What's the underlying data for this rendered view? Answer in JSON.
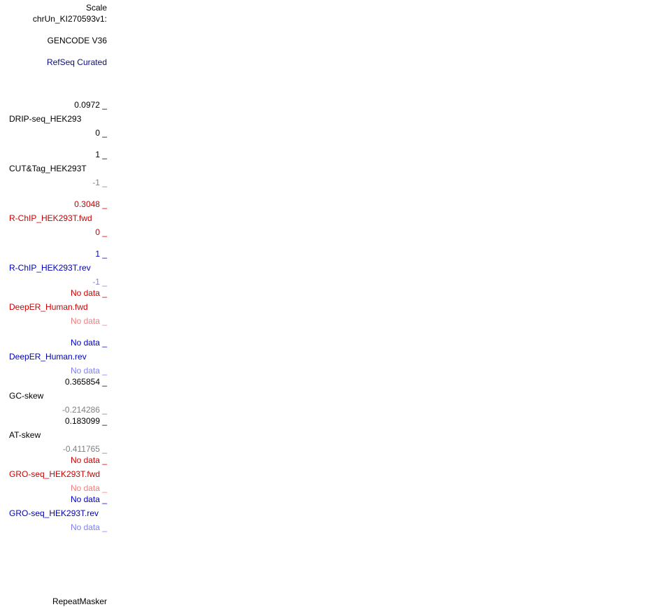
{
  "header": {
    "scale": "Scale",
    "chrom": "chrUn_KI270593v1:"
  },
  "tracks": {
    "gencode": {
      "label": "GENCODE V36"
    },
    "refseq": {
      "label": "RefSeq Curated"
    },
    "drip": {
      "label": "DRIP-seq_HEK293",
      "max": "0.0972 _",
      "min": "0 _"
    },
    "cuttag": {
      "label": "CUT&Tag_HEK293T",
      "max": "1 _",
      "min": "-1 _"
    },
    "rchip_fwd": {
      "label": "R-ChIP_HEK293T.fwd",
      "max": "0.3048 _",
      "min": "0 _"
    },
    "rchip_rev": {
      "label": "R-ChIP_HEK293T.rev",
      "max": "1 _",
      "min": "-1 _"
    },
    "deeper_fwd": {
      "label": "DeepER_Human.fwd",
      "max": "No data _",
      "min": "No data _"
    },
    "deeper_rev": {
      "label": "DeepER_Human.rev",
      "max": "No data _",
      "min": "No data _"
    },
    "gc_skew": {
      "label": "GC-skew",
      "max": "0.365854 _",
      "min": "-0.214286 _"
    },
    "at_skew": {
      "label": "AT-skew",
      "max": "0.183099 _",
      "min": "-0.411765 _"
    },
    "gro_fwd": {
      "label": "GRO-seq_HEK293T.fwd",
      "max": "No data _",
      "min": "No data _"
    },
    "gro_rev": {
      "label": "GRO-seq_HEK293T.rev",
      "max": "No data _",
      "min": "No data _"
    },
    "repeatmasker": {
      "label": "RepeatMasker"
    }
  },
  "colors": {
    "black": "#000000",
    "navy": "#0c0c78",
    "gray": "#808080",
    "red": "#cc0000",
    "pink": "#ee8080",
    "blue": "#0000bb",
    "light_blue": "#8080ee"
  }
}
